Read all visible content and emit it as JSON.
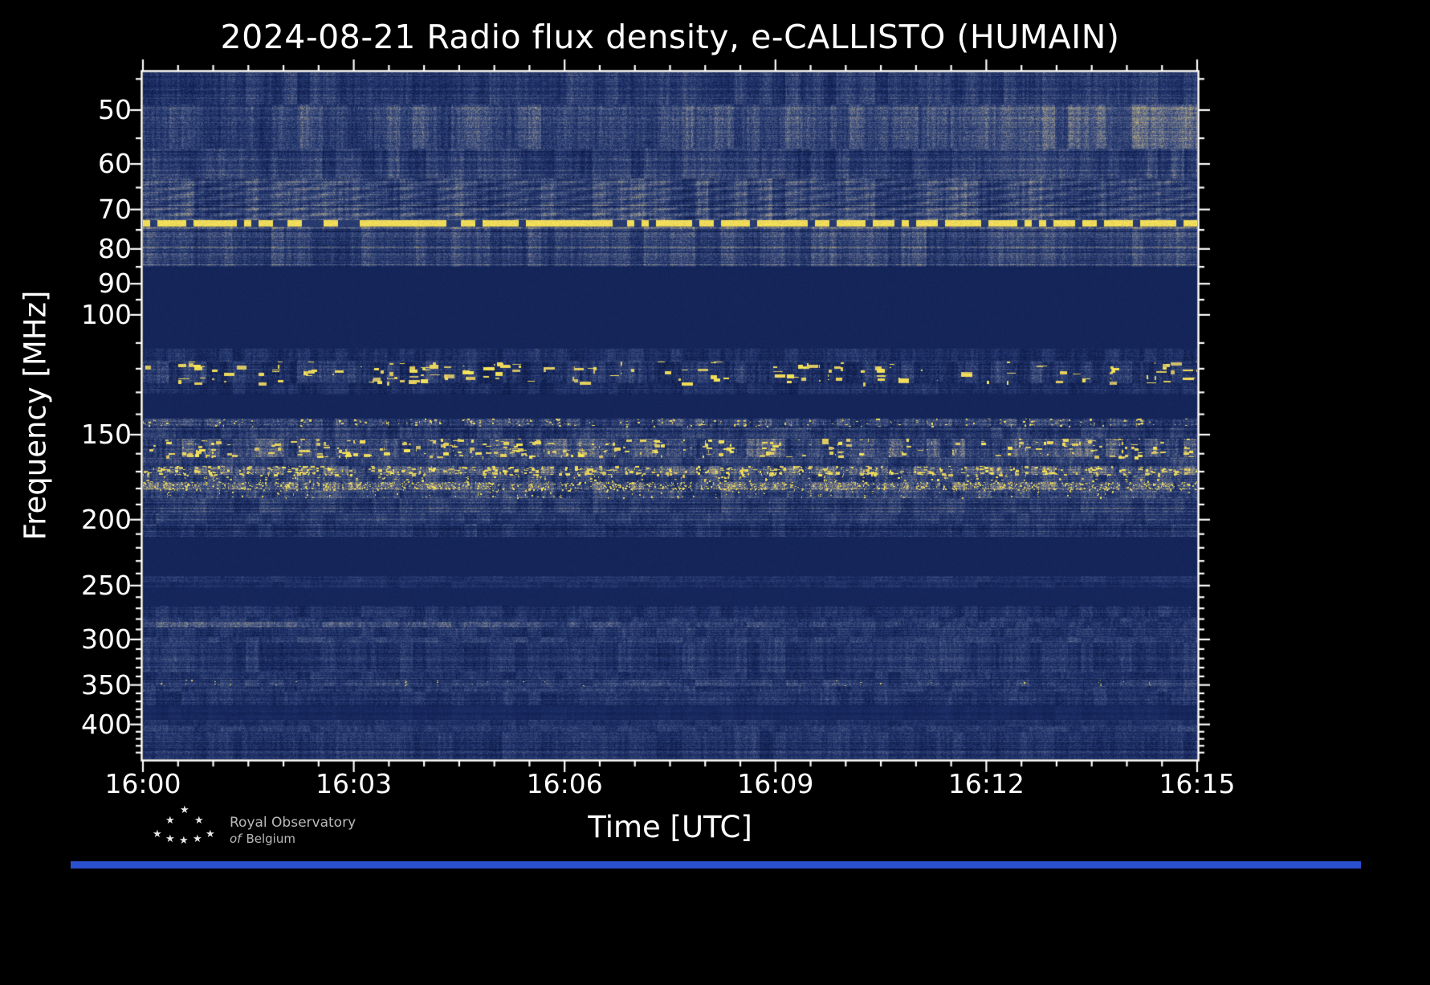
{
  "chart_data": {
    "type": "heatmap",
    "subtype": "radio-spectrogram",
    "title": "2024-08-21 Radio flux density, e-CALLISTO (HUMAIN)",
    "xlabel": "Time [UTC]",
    "ylabel": "Frequency [MHz]",
    "x_start": "16:00",
    "x_end": "16:15",
    "time_span_minutes": 15,
    "x_ticks": [
      "16:00",
      "16:03",
      "16:06",
      "16:09",
      "16:12",
      "16:15"
    ],
    "x_tick_minutes": [
      0,
      3,
      6,
      9,
      12,
      15
    ],
    "x_minor_step_minutes": 0.5,
    "y_scale": "log",
    "y_range_mhz": [
      44,
      450
    ],
    "y_axis_inverted_low_at_top": true,
    "y_ticks": [
      50,
      60,
      70,
      80,
      90,
      100,
      150,
      200,
      250,
      300,
      350,
      400
    ],
    "y_ticks_minor": [
      45,
      55,
      65,
      75,
      85,
      95,
      110,
      120,
      130,
      140,
      160,
      170,
      180,
      190,
      210,
      220,
      230,
      240,
      260,
      270,
      280,
      290,
      310,
      320,
      330,
      340,
      360,
      370,
      380,
      390,
      410,
      420,
      430,
      440
    ],
    "grid": false,
    "legend": "none",
    "description": "Dynamic radio spectrum: brightness encodes flux density. Bright yellow narrow horizontal bands (e.g. ~73 MHz, ~117-126 MHz, ~150-185 MHz) are strong narrowband signals/interference; solid dark navy bands (85-112, 131-142, 212-242, 252-268 MHz) contain no signal; remaining ranges show blue-grey background noise with faint horizontal striping.",
    "colormap_stops": [
      [
        0.0,
        "#0c1840"
      ],
      [
        0.2,
        "#182a62"
      ],
      [
        0.35,
        "#2c3f72"
      ],
      [
        0.5,
        "#4f5d87"
      ],
      [
        0.65,
        "#8b8b86"
      ],
      [
        0.78,
        "#b7a977"
      ],
      [
        0.9,
        "#ead45c"
      ],
      [
        1.0,
        "#ffef55"
      ]
    ],
    "bands": [
      {
        "f0": 44,
        "f1": 49,
        "type": "noise",
        "base": 0.28,
        "rowVar": 0.09,
        "colVar": 0.1,
        "pixVar": 0.13
      },
      {
        "f0": 49,
        "f1": 57,
        "type": "noise",
        "base": 0.42,
        "rowVar": 0.08,
        "colVar": 0.12,
        "pixVar": 0.14,
        "grad": 0.07
      },
      {
        "f0": 57,
        "f1": 63,
        "type": "noise",
        "base": 0.31,
        "rowVar": 0.1,
        "colVar": 0.1,
        "pixVar": 0.13
      },
      {
        "f0": 63,
        "f1": 72.6,
        "type": "noise",
        "base": 0.36,
        "rowVar": 0.1,
        "colVar": 0.11,
        "pixVar": 0.13,
        "wave": 0.07
      },
      {
        "f0": 72.6,
        "f1": 74.2,
        "type": "dashline",
        "base": 0.93,
        "gap_p": 0.26,
        "seg": 9
      },
      {
        "f0": 74.2,
        "f1": 85,
        "type": "noise",
        "base": 0.35,
        "rowVar": 0.15,
        "colVar": 0.1,
        "pixVar": 0.13
      },
      {
        "f0": 85,
        "f1": 112,
        "type": "solid",
        "base": 0.15
      },
      {
        "f0": 112,
        "f1": 117,
        "type": "noise",
        "base": 0.24,
        "rowVar": 0.06,
        "colVar": 0.09,
        "pixVar": 0.12
      },
      {
        "f0": 117,
        "f1": 126,
        "type": "noise",
        "base": 0.27,
        "rowVar": 0.07,
        "colVar": 0.13,
        "pixVar": 0.14,
        "yellow_p": 0.1,
        "yw": 14,
        "yth": 5
      },
      {
        "f0": 126,
        "f1": 131,
        "type": "noise",
        "base": 0.22,
        "rowVar": 0.06,
        "colVar": 0.08,
        "pixVar": 0.11
      },
      {
        "f0": 131,
        "f1": 142,
        "type": "solid",
        "base": 0.15
      },
      {
        "f0": 142,
        "f1": 146,
        "type": "noise",
        "base": 0.38,
        "rowVar": 0.08,
        "colVar": 0.14,
        "pixVar": 0.17,
        "yellow_p": 0.12,
        "yw": 3,
        "yth": 2
      },
      {
        "f0": 146,
        "f1": 152,
        "type": "noise",
        "base": 0.29,
        "rowVar": 0.1,
        "colVar": 0.1,
        "pixVar": 0.13
      },
      {
        "f0": 152,
        "f1": 162,
        "type": "noise",
        "base": 0.4,
        "rowVar": 0.09,
        "colVar": 0.14,
        "pixVar": 0.15,
        "yellow_p": 0.15,
        "yw": 8,
        "yth": 4
      },
      {
        "f0": 162,
        "f1": 167,
        "type": "noise",
        "base": 0.29,
        "rowVar": 0.08,
        "colVar": 0.1,
        "pixVar": 0.13
      },
      {
        "f0": 167,
        "f1": 172,
        "type": "noise",
        "base": 0.43,
        "rowVar": 0.08,
        "colVar": 0.16,
        "pixVar": 0.17,
        "yellow_p": 0.3,
        "yw": 5,
        "yth": 3
      },
      {
        "f0": 172,
        "f1": 176,
        "type": "noise",
        "base": 0.33,
        "rowVar": 0.08,
        "colVar": 0.12,
        "pixVar": 0.14,
        "yellow_p": 0.1,
        "yw": 3,
        "yth": 2
      },
      {
        "f0": 176,
        "f1": 181,
        "type": "noise",
        "base": 0.46,
        "rowVar": 0.08,
        "colVar": 0.16,
        "pixVar": 0.18,
        "yellow_p": 0.5,
        "yw": 2,
        "yth": 2
      },
      {
        "f0": 181,
        "f1": 186,
        "type": "noise",
        "base": 0.37,
        "rowVar": 0.09,
        "colVar": 0.12,
        "pixVar": 0.15,
        "yellow_p": 0.07,
        "yw": 2,
        "yth": 2
      },
      {
        "f0": 186,
        "f1": 196,
        "type": "noise",
        "base": 0.33,
        "rowVar": 0.12,
        "colVar": 0.09,
        "pixVar": 0.12
      },
      {
        "f0": 196,
        "f1": 203,
        "type": "noise",
        "base": 0.27,
        "rowVar": 0.1,
        "colVar": 0.08,
        "pixVar": 0.11
      },
      {
        "f0": 203,
        "f1": 212,
        "type": "noise",
        "base": 0.29,
        "rowVar": 0.12,
        "colVar": 0.08,
        "pixVar": 0.12
      },
      {
        "f0": 212,
        "f1": 242,
        "type": "solid",
        "base": 0.15
      },
      {
        "f0": 242,
        "f1": 247,
        "type": "noise",
        "base": 0.26,
        "rowVar": 0.07,
        "colVar": 0.06,
        "pixVar": 0.1
      },
      {
        "f0": 247,
        "f1": 252,
        "type": "noise",
        "base": 0.21,
        "rowVar": 0.05,
        "colVar": 0.05,
        "pixVar": 0.08
      },
      {
        "f0": 252,
        "f1": 268,
        "type": "solid",
        "base": 0.16
      },
      {
        "f0": 268,
        "f1": 278,
        "type": "noise",
        "base": 0.25,
        "rowVar": 0.08,
        "colVar": 0.08,
        "pixVar": 0.12
      },
      {
        "f0": 278,
        "f1": 283,
        "type": "noise",
        "base": 0.28,
        "rowVar": 0.08,
        "colVar": 0.08,
        "pixVar": 0.12
      },
      {
        "f0": 283,
        "f1": 288,
        "type": "noise",
        "base": 0.35,
        "rowVar": 0.08,
        "colVar": 0.1,
        "pixVar": 0.14,
        "grad": -0.09
      },
      {
        "f0": 288,
        "f1": 298,
        "type": "noise",
        "base": 0.26,
        "rowVar": 0.09,
        "colVar": 0.08,
        "pixVar": 0.12
      },
      {
        "f0": 298,
        "f1": 303,
        "type": "noise",
        "base": 0.32,
        "rowVar": 0.07,
        "colVar": 0.08,
        "pixVar": 0.12
      },
      {
        "f0": 303,
        "f1": 335,
        "type": "noise",
        "base": 0.25,
        "rowVar": 0.1,
        "colVar": 0.08,
        "pixVar": 0.12
      },
      {
        "f0": 335,
        "f1": 344,
        "type": "noise",
        "base": 0.28,
        "rowVar": 0.1,
        "colVar": 0.08,
        "pixVar": 0.12
      },
      {
        "f0": 344,
        "f1": 351,
        "type": "noise",
        "base": 0.32,
        "rowVar": 0.08,
        "colVar": 0.09,
        "pixVar": 0.13,
        "yellow_p": 0.02,
        "yw": 2,
        "yth": 1
      },
      {
        "f0": 351,
        "f1": 358,
        "type": "noise",
        "base": 0.27,
        "rowVar": 0.08,
        "colVar": 0.08,
        "pixVar": 0.12
      },
      {
        "f0": 358,
        "f1": 375,
        "type": "noise",
        "base": 0.25,
        "rowVar": 0.1,
        "colVar": 0.08,
        "pixVar": 0.12
      },
      {
        "f0": 375,
        "f1": 394,
        "type": "noise",
        "base": 0.18,
        "rowVar": 0.03,
        "colVar": 0.03,
        "pixVar": 0.05
      },
      {
        "f0": 394,
        "f1": 403,
        "type": "noise",
        "base": 0.26,
        "rowVar": 0.08,
        "colVar": 0.07,
        "pixVar": 0.11
      },
      {
        "f0": 403,
        "f1": 410,
        "type": "noise",
        "base": 0.3,
        "rowVar": 0.07,
        "colVar": 0.08,
        "pixVar": 0.12
      },
      {
        "f0": 410,
        "f1": 450,
        "type": "noise",
        "base": 0.26,
        "rowVar": 0.1,
        "colVar": 0.08,
        "pixVar": 0.12
      }
    ]
  },
  "logo": {
    "line1": "Royal Observatory",
    "line2_italic": "of",
    "line2_rest": "Belgium",
    "star_glyph": "★"
  },
  "colors": {
    "background": "#000000",
    "axis": "#ffffff",
    "footer_bar": "#2b50cf",
    "logo_text": "#b9b9b9"
  }
}
